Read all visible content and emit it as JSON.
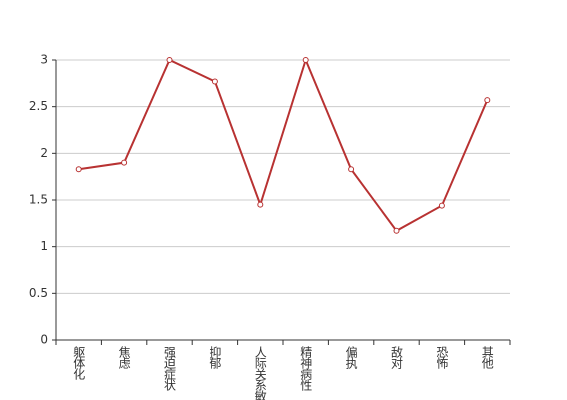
{
  "chart_data": {
    "type": "line",
    "categories": [
      "躯体化",
      "焦虑",
      "强迫症状",
      "抑郁",
      "人际关系敏感",
      "精神病性",
      "偏执",
      "敌对",
      "恐怖",
      "其他"
    ],
    "values": [
      1.83,
      1.9,
      3,
      2.77,
      1.45,
      3,
      1.83,
      1.17,
      1.44,
      2.57
    ],
    "color": "#b83232",
    "ylim": [
      0,
      3
    ],
    "yticks": [
      0,
      0.5,
      1,
      1.5,
      2,
      2.5,
      3
    ],
    "grid": true
  }
}
